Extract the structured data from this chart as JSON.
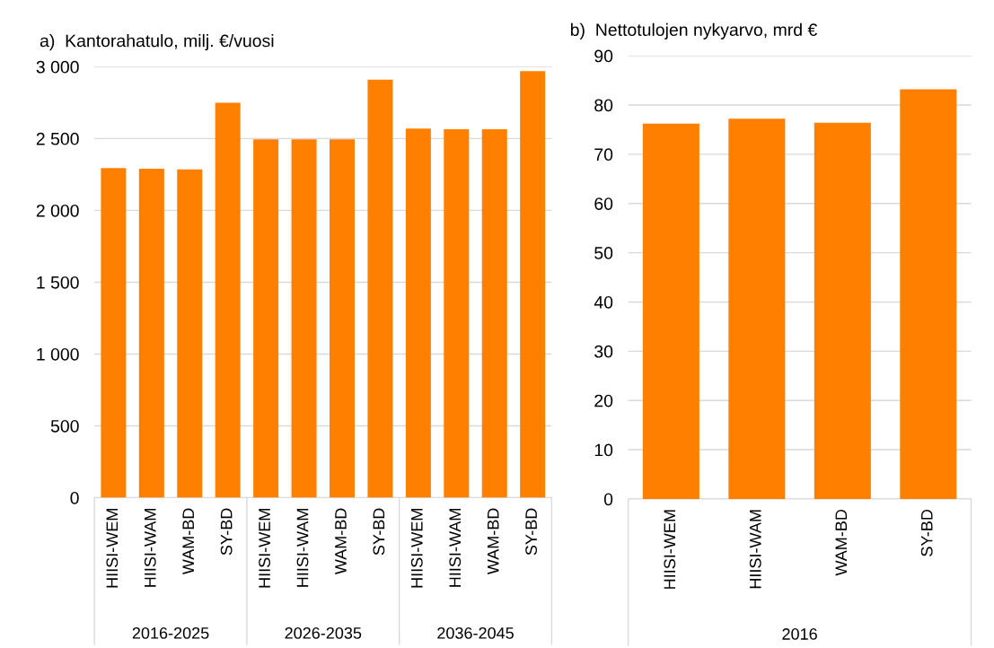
{
  "chart_data": [
    {
      "type": "bar",
      "title": "a)  Kantorahatulo, milj. €/vuosi",
      "categories": [
        "HIISI-WEM",
        "HIISI-WAM",
        "WAM-BD",
        "SY-BD",
        "HIISI-WEM",
        "HIISI-WAM",
        "WAM-BD",
        "SY-BD",
        "HIISI-WEM",
        "HIISI-WAM",
        "WAM-BD",
        "SY-BD"
      ],
      "values": [
        2295,
        2290,
        2285,
        2750,
        2495,
        2495,
        2495,
        2910,
        2570,
        2565,
        2565,
        2970
      ],
      "color": "#ff8000",
      "ylim": [
        0,
        3000
      ],
      "yticks": [
        0,
        {
          "value": 500,
          "label": "500"
        },
        {
          "value": 1000,
          "label": "1 000"
        },
        {
          "value": 1500,
          "label": "1 500"
        },
        {
          "value": 2000,
          "label": "2 000"
        },
        {
          "value": 2500,
          "label": "2 500"
        },
        {
          "value": 3000,
          "label": "3 000"
        }
      ],
      "grid": "y",
      "legend": false,
      "annotations": [
        "2016-2025",
        "2026-2035",
        "2036-2045"
      ]
    },
    {
      "type": "bar",
      "title": "b)  Nettotulojen nykyarvo, mrd €",
      "categories": [
        "HIISI-WEM",
        "HIISI-WAM",
        "WAM-BD",
        "SY-BD"
      ],
      "values": [
        76.2,
        77.2,
        76.4,
        83.2
      ],
      "color": "#ff8000",
      "ylim": [
        0,
        90
      ],
      "yticks": [
        0,
        10,
        20,
        30,
        40,
        50,
        60,
        70,
        80,
        90
      ],
      "grid": "y",
      "legend": false,
      "annotations": [
        "2016"
      ]
    }
  ]
}
